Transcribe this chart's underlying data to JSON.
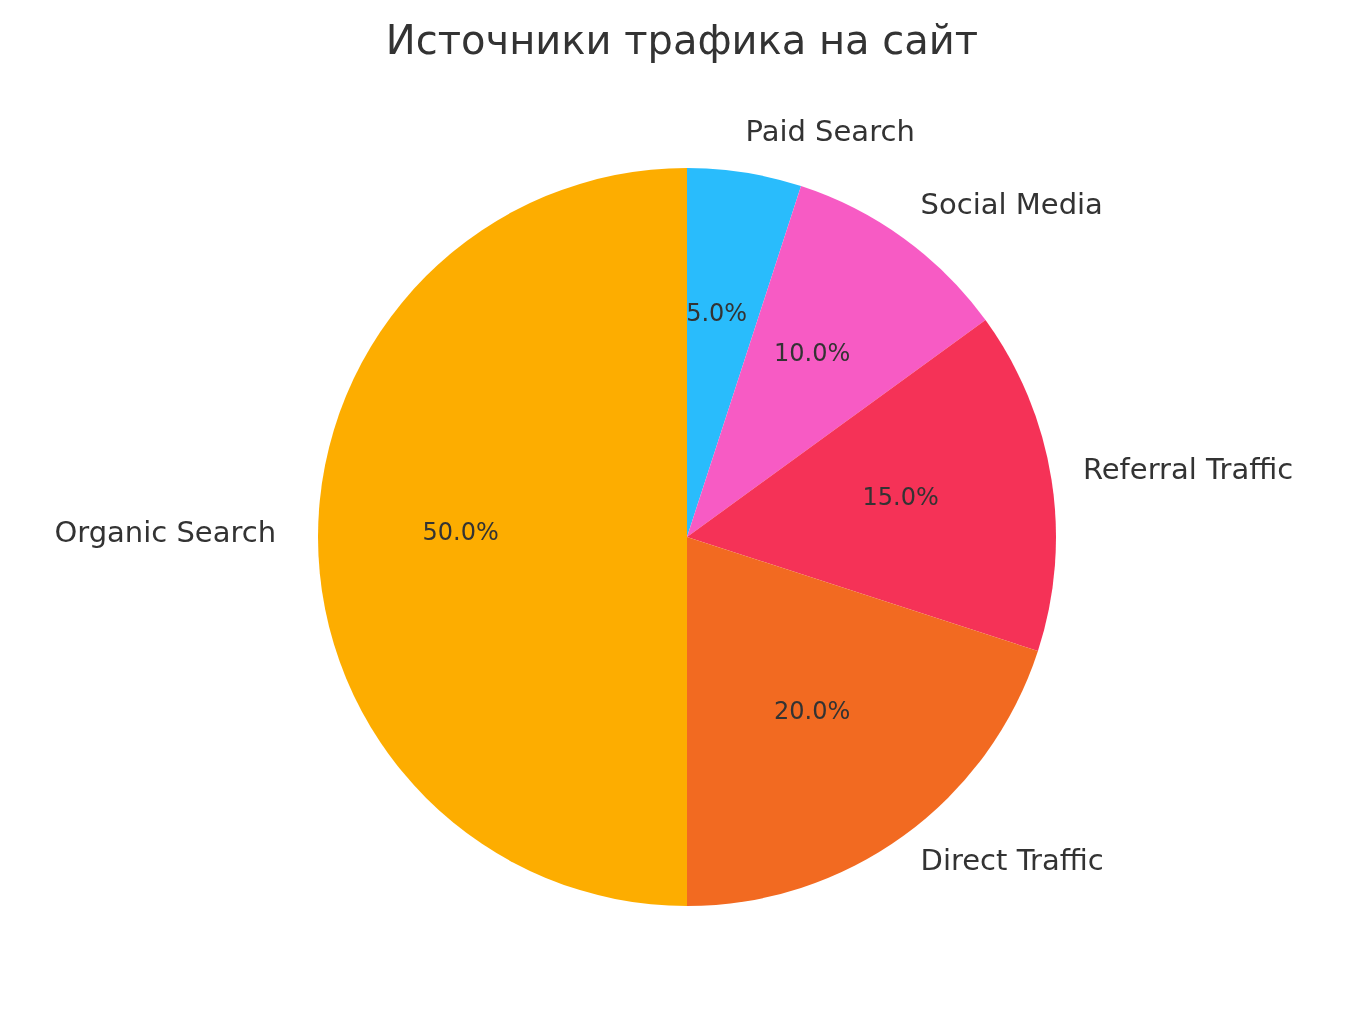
{
  "chart_data": {
    "type": "pie",
    "title": "Источники трафика на сайт",
    "categories": [
      "Paid Search",
      "Social Media",
      "Referral Traffic",
      "Direct Traffic",
      "Organic Search"
    ],
    "values": [
      5,
      10,
      15,
      20,
      50
    ],
    "colors": [
      "#29bcfc",
      "#f75bc4",
      "#f53257",
      "#f26a21",
      "#fdad00"
    ],
    "value_labels": [
      "5.0%",
      "10.0%",
      "15.0%",
      "20.0%",
      "50.0%"
    ]
  }
}
